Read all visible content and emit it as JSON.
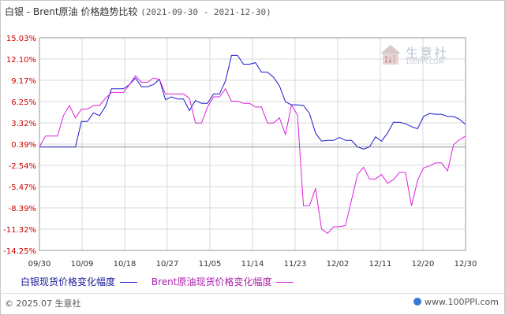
{
  "title": {
    "main": "白银 - Brent原油 价格趋势比较",
    "date_range": "(2021-09-30 - 2021-12-30)"
  },
  "watermark": {
    "name": "生意社",
    "url": "100PPI.COM"
  },
  "footer": {
    "copyright": "© 2025.07 生意社",
    "url": "www.100PPI.com"
  },
  "colors": {
    "silver": "#1a1acc",
    "brent": "#dd22dd",
    "axis_label": "#cc0000",
    "grid": "#d8d8d8",
    "zero_line": "#888888"
  },
  "chart_data": {
    "type": "line",
    "title": "白银 - Brent原油 价格趋势比较",
    "subtitle": "(2021-09-30 - 2021-12-30)",
    "xlabel": "",
    "ylabel": "",
    "ylim": [
      -14.25,
      15.03
    ],
    "y_ticks": [
      "15.03%",
      "12.10%",
      "9.17%",
      "6.25%",
      "3.32%",
      "0.39%",
      "-2.54%",
      "-5.47%",
      "-8.39%",
      "-11.32%",
      "-14.25%"
    ],
    "x_ticks": [
      "09/30",
      "10/09",
      "10/18",
      "10/27",
      "11/05",
      "11/14",
      "11/23",
      "12/02",
      "12/11",
      "12/20",
      "12/30"
    ],
    "grid": true,
    "legend_position": "bottom-left",
    "series": [
      {
        "name": "白银现货价格变化幅度",
        "color": "#1a1acc",
        "points": [
          [
            0,
            0.0
          ],
          [
            1,
            0.0
          ],
          [
            2,
            0.0
          ],
          [
            3,
            0.0
          ],
          [
            4,
            0.0
          ],
          [
            5,
            0.0
          ],
          [
            6,
            0.0
          ],
          [
            7,
            3.5
          ],
          [
            8,
            3.5
          ],
          [
            9,
            4.7
          ],
          [
            10,
            4.3
          ],
          [
            11,
            5.6
          ],
          [
            12,
            8.0
          ],
          [
            13,
            8.0
          ],
          [
            14,
            8.0
          ],
          [
            15,
            8.6
          ],
          [
            16,
            9.5
          ],
          [
            17,
            8.3
          ],
          [
            18,
            8.3
          ],
          [
            19,
            8.6
          ],
          [
            20,
            9.3
          ],
          [
            21,
            6.5
          ],
          [
            22,
            6.9
          ],
          [
            23,
            6.6
          ],
          [
            24,
            6.6
          ],
          [
            25,
            5.0
          ],
          [
            26,
            6.4
          ],
          [
            27,
            6.0
          ],
          [
            28,
            6.0
          ],
          [
            29,
            7.3
          ],
          [
            30,
            7.3
          ],
          [
            31,
            9.1
          ],
          [
            32,
            12.6
          ],
          [
            33,
            12.6
          ],
          [
            34,
            11.4
          ],
          [
            35,
            11.4
          ],
          [
            36,
            11.6
          ],
          [
            37,
            10.3
          ],
          [
            38,
            10.3
          ],
          [
            39,
            9.6
          ],
          [
            40,
            8.4
          ],
          [
            41,
            6.2
          ],
          [
            42,
            5.8
          ],
          [
            43,
            5.8
          ],
          [
            44,
            5.7
          ],
          [
            45,
            4.6
          ],
          [
            46,
            1.9
          ],
          [
            47,
            0.8
          ],
          [
            48,
            0.9
          ],
          [
            49,
            0.9
          ],
          [
            50,
            1.3
          ],
          [
            51,
            0.9
          ],
          [
            52,
            0.9
          ],
          [
            53,
            0.0
          ],
          [
            54,
            -0.3
          ],
          [
            55,
            0.0
          ],
          [
            56,
            1.4
          ],
          [
            57,
            0.8
          ],
          [
            58,
            1.9
          ],
          [
            59,
            3.4
          ],
          [
            60,
            3.4
          ],
          [
            61,
            3.2
          ],
          [
            62,
            2.8
          ],
          [
            63,
            2.5
          ],
          [
            64,
            4.2
          ],
          [
            65,
            4.6
          ],
          [
            66,
            4.5
          ],
          [
            67,
            4.5
          ],
          [
            68,
            4.2
          ],
          [
            69,
            4.2
          ],
          [
            70,
            3.8
          ],
          [
            71,
            3.1
          ]
        ]
      },
      {
        "name": "Brent原油现货价格变化幅度",
        "color": "#dd22dd",
        "points": [
          [
            0,
            0.0
          ],
          [
            1,
            1.5
          ],
          [
            2,
            1.5
          ],
          [
            3,
            1.5
          ],
          [
            4,
            4.3
          ],
          [
            5,
            5.7
          ],
          [
            6,
            4.0
          ],
          [
            7,
            5.2
          ],
          [
            8,
            5.2
          ],
          [
            9,
            5.7
          ],
          [
            10,
            5.7
          ],
          [
            11,
            6.7
          ],
          [
            12,
            7.5
          ],
          [
            13,
            7.5
          ],
          [
            14,
            7.5
          ],
          [
            15,
            8.6
          ],
          [
            16,
            9.8
          ],
          [
            17,
            8.9
          ],
          [
            18,
            8.9
          ],
          [
            19,
            9.5
          ],
          [
            20,
            9.3
          ],
          [
            21,
            7.3
          ],
          [
            22,
            7.3
          ],
          [
            23,
            7.3
          ],
          [
            24,
            7.3
          ],
          [
            25,
            6.7
          ],
          [
            26,
            3.3
          ],
          [
            27,
            3.3
          ],
          [
            28,
            5.5
          ],
          [
            29,
            6.9
          ],
          [
            30,
            6.9
          ],
          [
            31,
            8.0
          ],
          [
            32,
            6.3
          ],
          [
            33,
            6.3
          ],
          [
            34,
            6.0
          ],
          [
            35,
            6.0
          ],
          [
            36,
            5.5
          ],
          [
            37,
            5.5
          ],
          [
            38,
            3.3
          ],
          [
            39,
            3.3
          ],
          [
            40,
            4.0
          ],
          [
            41,
            1.7
          ],
          [
            42,
            5.8
          ],
          [
            43,
            4.4
          ],
          [
            44,
            -8.1
          ],
          [
            45,
            -8.1
          ],
          [
            46,
            -5.7
          ],
          [
            47,
            -11.3
          ],
          [
            48,
            -11.9
          ],
          [
            49,
            -11.0
          ],
          [
            50,
            -11.0
          ],
          [
            51,
            -10.8
          ],
          [
            52,
            -7.3
          ],
          [
            53,
            -3.8
          ],
          [
            54,
            -2.8
          ],
          [
            55,
            -4.4
          ],
          [
            56,
            -4.4
          ],
          [
            57,
            -3.8
          ],
          [
            58,
            -5.0
          ],
          [
            59,
            -4.5
          ],
          [
            60,
            -3.5
          ],
          [
            61,
            -3.5
          ],
          [
            62,
            -8.1
          ],
          [
            63,
            -4.6
          ],
          [
            64,
            -2.9
          ],
          [
            65,
            -2.6
          ],
          [
            66,
            -2.2
          ],
          [
            67,
            -2.2
          ],
          [
            68,
            -3.3
          ],
          [
            69,
            0.3
          ],
          [
            70,
            1.0
          ],
          [
            71,
            1.5
          ]
        ]
      }
    ]
  }
}
